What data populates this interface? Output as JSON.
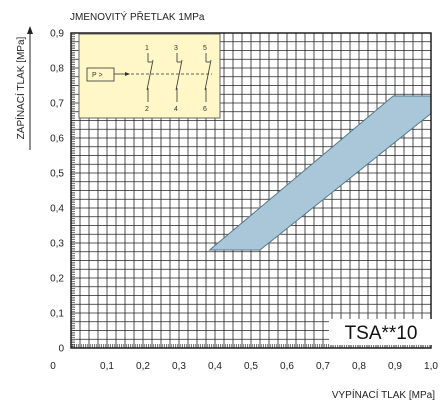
{
  "chart_data": {
    "type": "area",
    "title": "JMENOVITÝ PŘETLAK 1MPa",
    "xlabel": "VYPÍNACÍ TLAK  [MPa]",
    "ylabel": "ZAPÍNACÍ TLAK [MPa]",
    "xlim": [
      0,
      1.0
    ],
    "ylim": [
      0,
      0.9
    ],
    "xticks": [
      "0",
      "0,1",
      "0,2",
      "0,3",
      "0,4",
      "0,5",
      "0,6",
      "0,7",
      "0,8",
      "0,9",
      "1,0"
    ],
    "yticks": [
      "0",
      "0,1",
      "0,2",
      "0,3",
      "0,4",
      "0,5",
      "0,6",
      "0,7",
      "0,8",
      "0,9"
    ],
    "grid": true,
    "model_label": "TSA**10",
    "band": {
      "name": "",
      "color": "#a9c7d8",
      "vertices": [
        [
          0.385,
          0.28
        ],
        [
          0.895,
          0.72
        ],
        [
          1.0,
          0.72
        ],
        [
          1.0,
          0.67
        ],
        [
          0.525,
          0.28
        ]
      ]
    },
    "inset": {
      "contact_labels_top": [
        "1",
        "3",
        "5"
      ],
      "contact_labels_bottom": [
        "2",
        "4",
        "6"
      ],
      "relay_label": "P >",
      "background": "#fff7c8"
    }
  }
}
